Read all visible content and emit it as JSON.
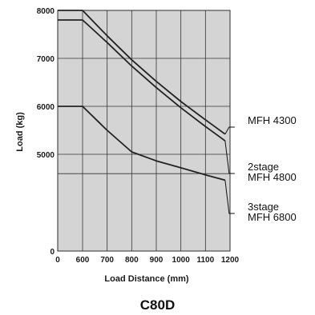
{
  "chart_data": {
    "type": "line",
    "title": "C80D",
    "xlabel": "Load Distance (mm)",
    "ylabel": "Load (kg)",
    "x_ticks": [
      "0",
      "600",
      "700",
      "800",
      "900",
      "1000",
      "1100",
      "1200"
    ],
    "y_ticks": [
      "0",
      "5000",
      "6000",
      "7000",
      "8000"
    ],
    "grid": true,
    "background": "#d4d4d4",
    "line_color": "#222222",
    "series": [
      {
        "label_lines": [
          "MFH 4300"
        ],
        "x": [
          0,
          600,
          700,
          800,
          900,
          1000,
          1100,
          1180
        ],
        "y": [
          8000,
          8000,
          7470,
          6970,
          6520,
          6100,
          5720,
          5420
        ]
      },
      {
        "label_lines": [
          "2stage",
          "MFH 4800"
        ],
        "x": [
          0,
          600,
          700,
          800,
          900,
          1000,
          1100,
          1180
        ],
        "y": [
          7800,
          7800,
          7330,
          6840,
          6390,
          5970,
          5580,
          5280
        ]
      },
      {
        "label_lines": [
          "3stage",
          "MFH 6800"
        ],
        "x": [
          0,
          600,
          700,
          800,
          900,
          1000,
          1100,
          1180
        ],
        "y": [
          6000,
          6000,
          5500,
          5050,
          4660,
          4300,
          3940,
          3660
        ]
      }
    ]
  }
}
